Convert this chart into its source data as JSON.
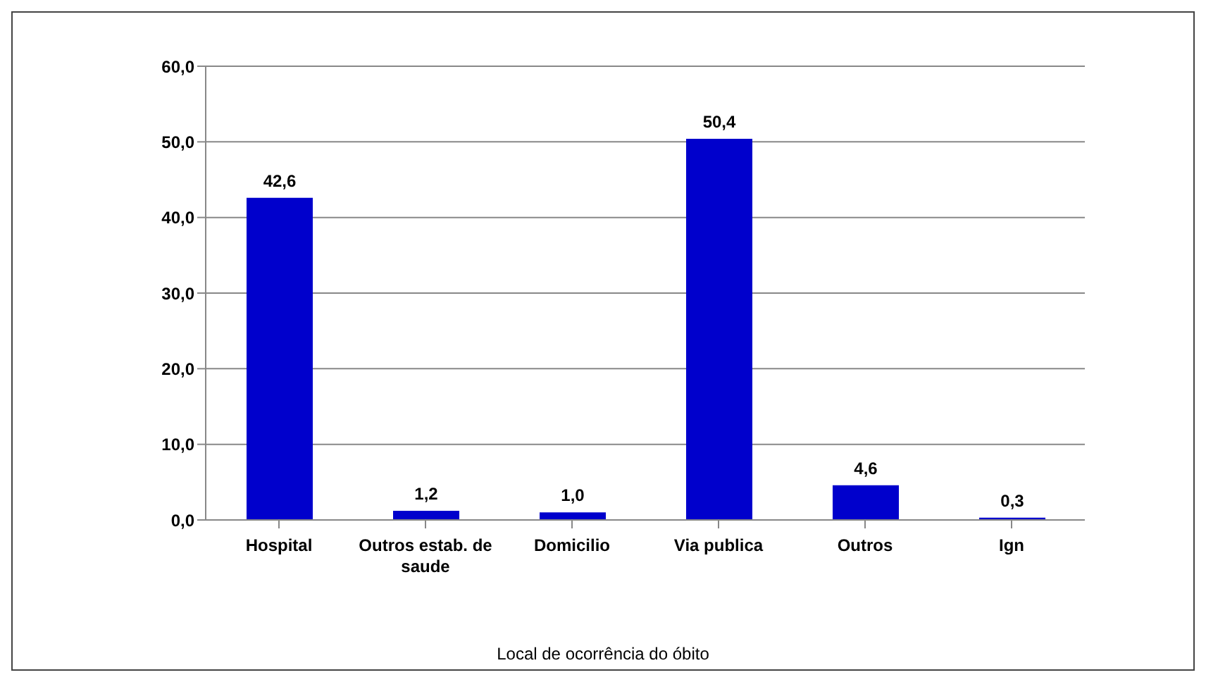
{
  "chart_data": {
    "type": "bar",
    "xlabel": "Local de ocorrência do óbito",
    "categories": [
      "Hospital",
      "Outros estab. de saude",
      "Domicilio",
      "Via publica",
      "Outros",
      "Ign"
    ],
    "values": [
      42.6,
      1.2,
      1.0,
      50.4,
      4.6,
      0.3
    ],
    "value_labels": [
      "42,6",
      "1,2",
      "1,0",
      "50,4",
      "4,6",
      "0,3"
    ],
    "color": "#0000cc",
    "ylim": [
      0,
      60
    ],
    "yticks": [
      {
        "value": 0,
        "label": "0,0"
      },
      {
        "value": 10,
        "label": "10,0"
      },
      {
        "value": 20,
        "label": "20,0"
      },
      {
        "value": 30,
        "label": "30,0"
      },
      {
        "value": 40,
        "label": "40,0"
      },
      {
        "value": 50,
        "label": "50,0"
      },
      {
        "value": 60,
        "label": "60,0"
      }
    ],
    "grid": "y"
  }
}
